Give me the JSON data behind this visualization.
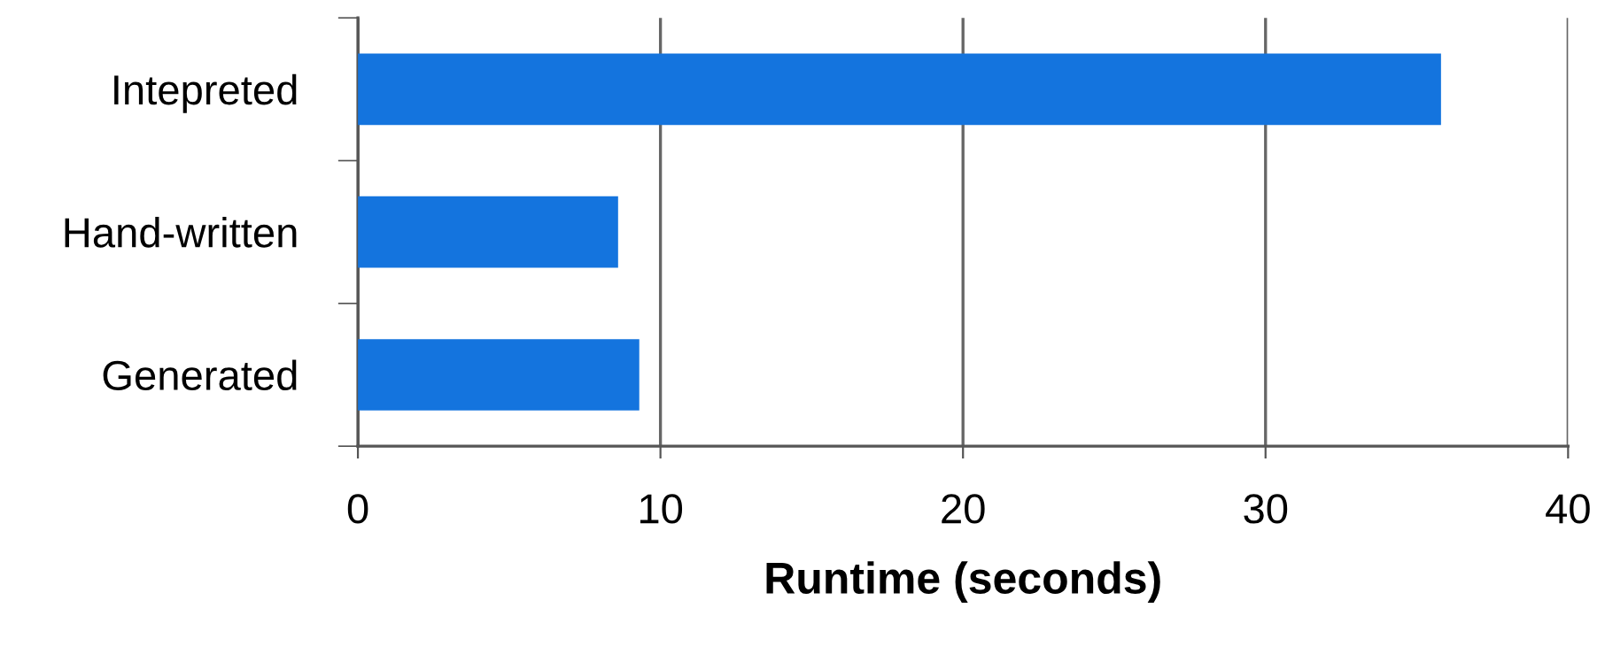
{
  "chart_data": {
    "type": "bar",
    "orientation": "horizontal",
    "xlabel": "Runtime (seconds)",
    "categories": [
      "Intepreted",
      "Hand-written",
      "Generated"
    ],
    "values": [
      35.8,
      8.6,
      9.3
    ],
    "color": "#1474de",
    "xlim": [
      0,
      40
    ],
    "xticks": [
      0,
      10,
      20,
      30,
      40
    ],
    "grid": "x",
    "legend": false
  }
}
